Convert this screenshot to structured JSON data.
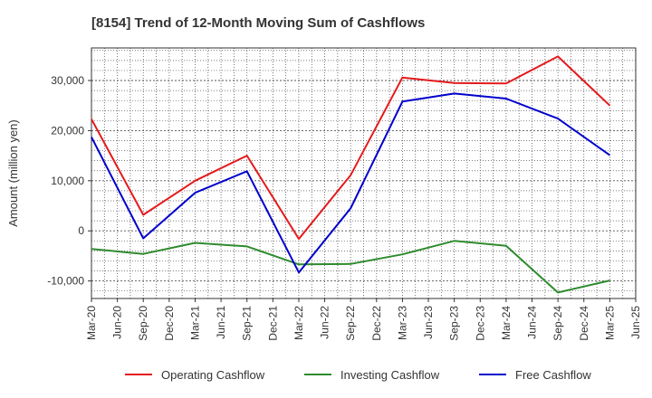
{
  "chart_data": {
    "type": "line",
    "title": "[8154]  Trend of 12-Month Moving Sum of Cashflows",
    "xlabel": "",
    "ylabel": "Amount (million yen)",
    "categories": [
      "Mar-20",
      "Jun-20",
      "Sep-20",
      "Dec-20",
      "Mar-21",
      "Jun-21",
      "Sep-21",
      "Dec-21",
      "Mar-22",
      "Jun-22",
      "Sep-22",
      "Dec-22",
      "Mar-23",
      "Jun-23",
      "Sep-23",
      "Dec-23",
      "Mar-24",
      "Jun-24",
      "Sep-24",
      "Dec-24",
      "Mar-25",
      "Jun-25"
    ],
    "ylim": [
      -13500,
      36500
    ],
    "yticks": [
      -10000,
      0,
      10000,
      20000,
      30000
    ],
    "ytick_labels": [
      "-10,000",
      "0",
      "10,000",
      "20,000",
      "30,000"
    ],
    "grid": true,
    "legend_position": "bottom",
    "series": [
      {
        "name": "Operating Cashflow",
        "color": "#e41a1c",
        "values": [
          22300,
          null,
          3200,
          null,
          10000,
          null,
          15000,
          null,
          -1600,
          null,
          11100,
          null,
          30600,
          null,
          29500,
          null,
          29400,
          null,
          34800,
          null,
          25000,
          null
        ]
      },
      {
        "name": "Investing Cashflow",
        "color": "#2e8b2e",
        "values": [
          -3600,
          null,
          -4600,
          null,
          -2400,
          null,
          -3100,
          null,
          -6700,
          null,
          -6600,
          null,
          -4700,
          null,
          -2000,
          null,
          -3000,
          null,
          -12300,
          null,
          -9900,
          null
        ]
      },
      {
        "name": "Free Cashflow",
        "color": "#0000cc",
        "values": [
          18700,
          null,
          -1500,
          null,
          7600,
          null,
          11900,
          null,
          -8300,
          null,
          4500,
          null,
          25800,
          null,
          27400,
          null,
          26400,
          null,
          22400,
          null,
          15100,
          null
        ]
      }
    ]
  }
}
